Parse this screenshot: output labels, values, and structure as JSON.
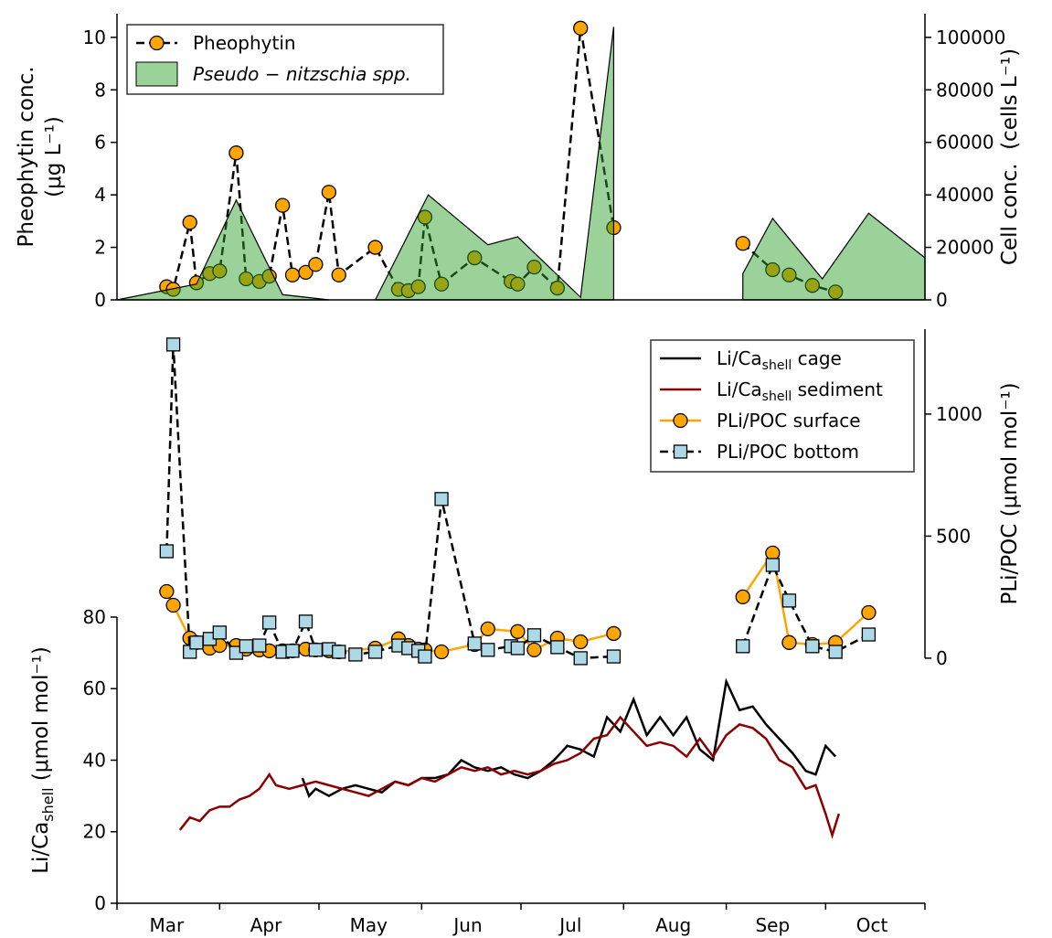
{
  "chart_data": [
    {
      "type": "line",
      "ylabel": [
        "Pheophytin conc.",
        "(μg L⁻¹)"
      ],
      "y2label": "Cell conc.  (cells L⁻¹)",
      "xlim": [
        60,
        304
      ],
      "ylim": [
        0,
        10.9
      ],
      "yticks": [
        0,
        2,
        4,
        6,
        8,
        10
      ],
      "y2lim": [
        0,
        109000
      ],
      "y2ticks": [
        0,
        20000,
        40000,
        60000,
        80000,
        100000
      ],
      "legend": "upper left",
      "series": [
        {
          "name": "Pheophytin",
          "kind": "line",
          "color": "#000000",
          "marker_color": "#ffa500",
          "marker": "circle",
          "linestyle": "dashed",
          "x": [
            75,
            77,
            82,
            84,
            88,
            91,
            96,
            99,
            103,
            106,
            110,
            113,
            117,
            120,
            124,
            127,
            138,
            145,
            148,
            151,
            153,
            158,
            168,
            179,
            181,
            186,
            193,
            200,
            210,
            230,
            249,
            258,
            263,
            270,
            277
          ],
          "values": [
            0.5,
            0.4,
            2.95,
            0.65,
            1.0,
            1.1,
            5.6,
            0.8,
            0.7,
            0.9,
            3.6,
            0.95,
            1.05,
            1.35,
            4.1,
            0.95,
            2.0,
            0.4,
            0.35,
            0.5,
            3.15,
            0.6,
            1.6,
            0.7,
            0.6,
            1.25,
            0.45,
            10.35,
            2.75,
            null,
            2.15,
            1.15,
            0.95,
            0.55,
            0.3
          ]
        },
        {
          "name": "Pseudo − nitzschia spp.",
          "kind": "area",
          "axis": "y2",
          "color": "#2ca02c",
          "x": [
            60,
            84,
            96,
            110,
            124,
            131,
            138,
            154,
            172,
            181,
            200,
            210,
            230,
            249,
            258,
            273,
            287,
            304
          ],
          "values": [
            0,
            6000,
            38000,
            2000,
            0,
            null,
            0,
            40000,
            21000,
            24000,
            1000,
            104000,
            null,
            10000,
            31000,
            8000,
            33000,
            16000
          ]
        }
      ]
    },
    {
      "type": "line",
      "ylabel": "Li/Ca",
      "ylabel_sub": "shell",
      "ylabel_suffix": " (μmol mol⁻¹)",
      "y2label": "PLi/POC (μmol mol⁻¹)",
      "xlim": [
        60,
        304
      ],
      "ylim": [
        0,
        160.5
      ],
      "yticks": [
        0,
        20,
        40,
        60,
        80
      ],
      "y2lim": [
        -1004,
        1348
      ],
      "y2ticks": [
        0,
        500,
        1000
      ],
      "legend": "upper right",
      "xticks": [
        {
          "value": 75,
          "label": "Mar"
        },
        {
          "value": 105,
          "label": "Apr"
        },
        {
          "value": 136,
          "label": "May"
        },
        {
          "value": 166,
          "label": "Jun"
        },
        {
          "value": 197,
          "label": "Jul"
        },
        {
          "value": 228,
          "label": "Aug"
        },
        {
          "value": 258,
          "label": "Sep"
        },
        {
          "value": 288,
          "label": "Oct"
        }
      ],
      "xminor": [
        60,
        91,
        121,
        152,
        182,
        213,
        244,
        274,
        304
      ],
      "series": [
        {
          "name": "Li/Ca",
          "name_sub": "shell",
          "name_suffix": " cage",
          "kind": "line",
          "color": "#000000",
          "linestyle": "solid",
          "x": [
            116,
            118,
            120,
            124,
            128,
            132,
            136,
            140,
            144,
            148,
            152,
            156,
            160,
            164,
            168,
            172,
            176,
            180,
            184,
            188,
            192,
            196,
            200,
            204,
            208,
            212,
            216,
            220,
            224,
            228,
            232,
            236,
            240,
            244,
            248,
            252,
            256,
            260,
            264,
            268,
            271,
            274,
            277
          ],
          "values": [
            35,
            30,
            32,
            30,
            32,
            33,
            32,
            31,
            34,
            33,
            35,
            35,
            36,
            40,
            38,
            37,
            38,
            36,
            35,
            37,
            40,
            44,
            43,
            41,
            52,
            48,
            57,
            47,
            52,
            47,
            52,
            43,
            40,
            62,
            54,
            55,
            50,
            46,
            42,
            37,
            36,
            44,
            41
          ]
        },
        {
          "name": "Li/Ca",
          "name_sub": "shell",
          "name_suffix": " sediment",
          "kind": "line",
          "color": "#8b0000",
          "linestyle": "solid",
          "x": [
            79,
            82,
            85,
            88,
            91,
            94,
            97,
            100,
            103,
            106,
            108,
            112,
            116,
            120,
            124,
            128,
            132,
            136,
            140,
            144,
            148,
            152,
            156,
            160,
            164,
            168,
            172,
            176,
            180,
            184,
            188,
            192,
            196,
            200,
            204,
            208,
            212,
            216,
            220,
            224,
            228,
            232,
            236,
            240,
            244,
            248,
            252,
            256,
            260,
            264,
            268,
            271,
            274,
            276,
            278
          ],
          "values": [
            20.5,
            24,
            23,
            26,
            27,
            27,
            29,
            30,
            32,
            36,
            33,
            32,
            33,
            34,
            33,
            32,
            31,
            30,
            32,
            34,
            33,
            35,
            34,
            36,
            38,
            37,
            38,
            36,
            37,
            36,
            37,
            39,
            40,
            42,
            46,
            47,
            52,
            48,
            44,
            45,
            44,
            41,
            46,
            41,
            47,
            50,
            49,
            46,
            40,
            38,
            32,
            33,
            25,
            19,
            25
          ]
        },
        {
          "name": "PLi/POC surface",
          "kind": "line",
          "axis": "y2",
          "color": "#ffa500",
          "marker_color": "#ffa500",
          "marker": "circle",
          "linestyle": "solid",
          "x": [
            75,
            77,
            82,
            84,
            88,
            91,
            96,
            99,
            103,
            106,
            110,
            113,
            117,
            120,
            124,
            127,
            138,
            145,
            148,
            151,
            153,
            158,
            168,
            172,
            181,
            186,
            193,
            200,
            210,
            230,
            249,
            258,
            263,
            270,
            277,
            287
          ],
          "values": [
            273,
            217,
            82,
            64,
            41,
            52,
            52,
            37,
            34,
            30,
            30,
            30,
            37,
            34,
            30,
            26,
            41,
            79,
            52,
            37,
            34,
            26,
            56,
            120,
            109,
            34,
            82,
            67,
            101,
            null,
            251,
            431,
            64,
            56,
            64,
            187
          ]
        },
        {
          "name": "PLi/POC bottom",
          "kind": "line",
          "axis": "y2",
          "color": "#000000",
          "marker_color": "#add8e6",
          "marker": "square",
          "linestyle": "dashed",
          "x": [
            75,
            77,
            82,
            84,
            88,
            91,
            96,
            99,
            103,
            106,
            110,
            113,
            117,
            120,
            124,
            127,
            132,
            138,
            145,
            148,
            151,
            153,
            158,
            168,
            172,
            179,
            181,
            186,
            193,
            200,
            210,
            230,
            249,
            258,
            263,
            270,
            277,
            287
          ],
          "values": [
            438,
            1285,
            26,
            64,
            79,
            105,
            22,
            49,
            52,
            146,
            26,
            30,
            150,
            34,
            37,
            26,
            15,
            26,
            52,
            41,
            30,
            7,
            652,
            60,
            34,
            49,
            41,
            94,
            45,
            0,
            7,
            null,
            49,
            382,
            236,
            49,
            26,
            97
          ]
        }
      ]
    }
  ]
}
